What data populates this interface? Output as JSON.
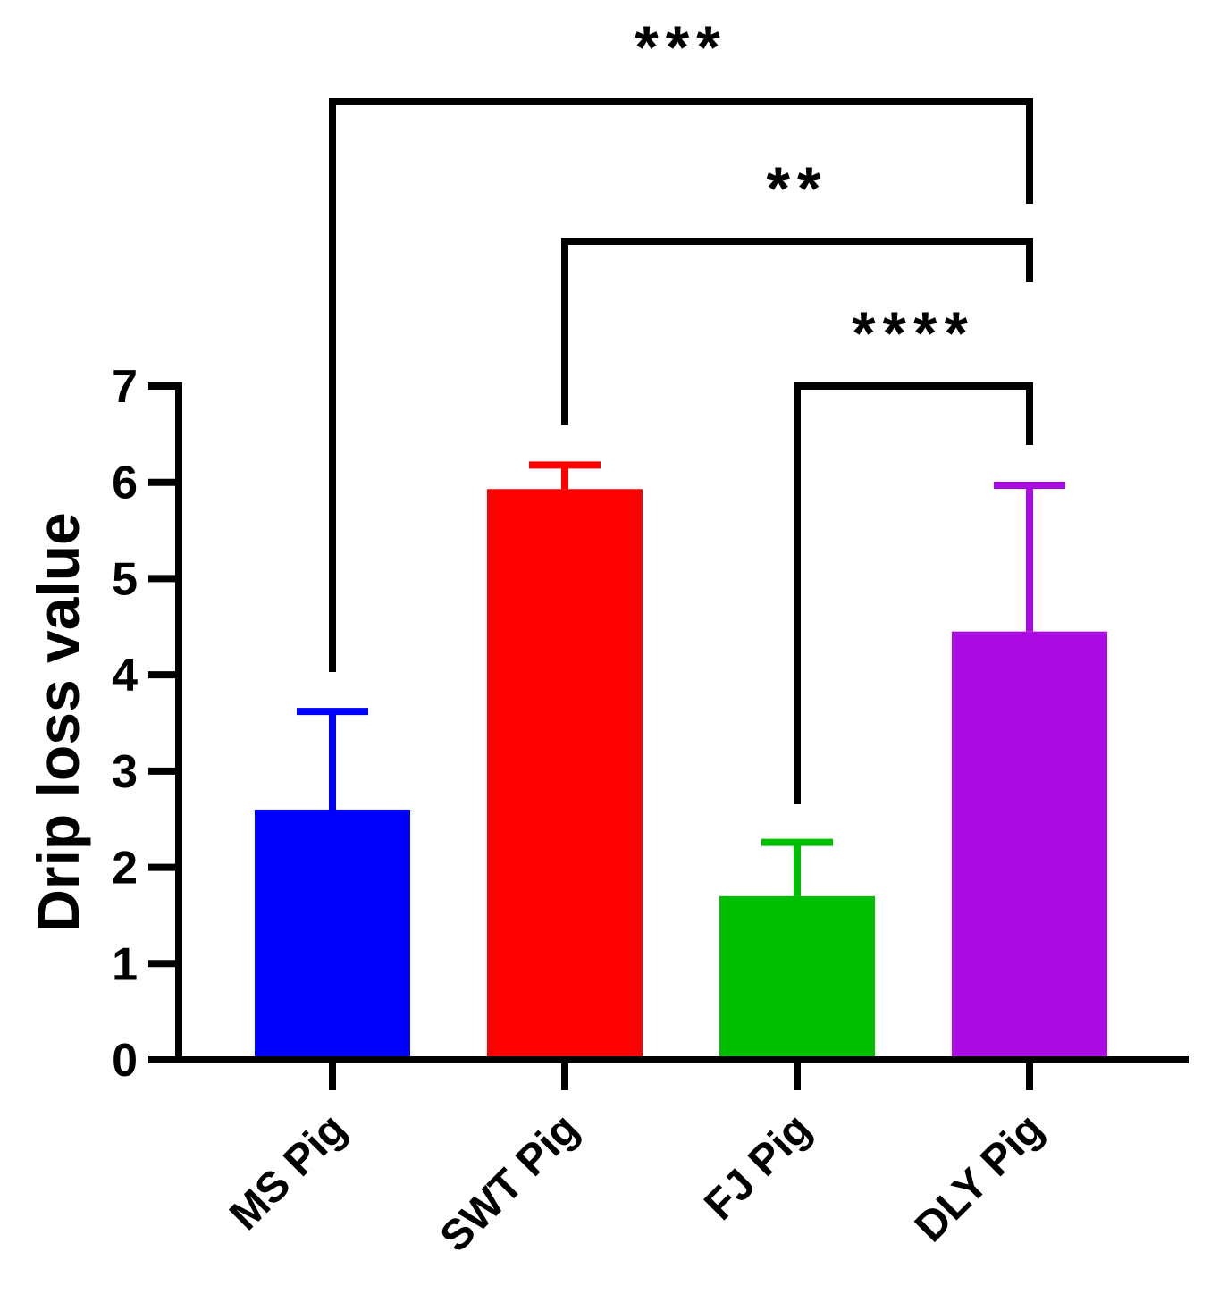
{
  "chart_data": {
    "type": "bar",
    "title": "",
    "xlabel": "",
    "ylabel": "Drip loss value",
    "ylim": [
      0,
      7
    ],
    "yticks": [
      0,
      1,
      2,
      3,
      4,
      5,
      6,
      7
    ],
    "categories": [
      "MS Pig",
      "SWT Pig",
      "FJ Pig",
      "DLY Pig"
    ],
    "values": [
      2.6,
      5.93,
      1.7,
      4.45
    ],
    "error_upper": [
      3.62,
      6.18,
      2.26,
      5.97
    ],
    "colors": [
      "#0000FF",
      "#FF0000",
      "#00BF00",
      "#A90BE1"
    ],
    "significance": [
      {
        "from": "MS Pig",
        "to": "DLY Pig",
        "label": "***"
      },
      {
        "from": "SWT Pig",
        "to": "DLY Pig",
        "label": "**"
      },
      {
        "from": "FJ Pig",
        "to": "DLY Pig",
        "label": "****"
      }
    ]
  }
}
